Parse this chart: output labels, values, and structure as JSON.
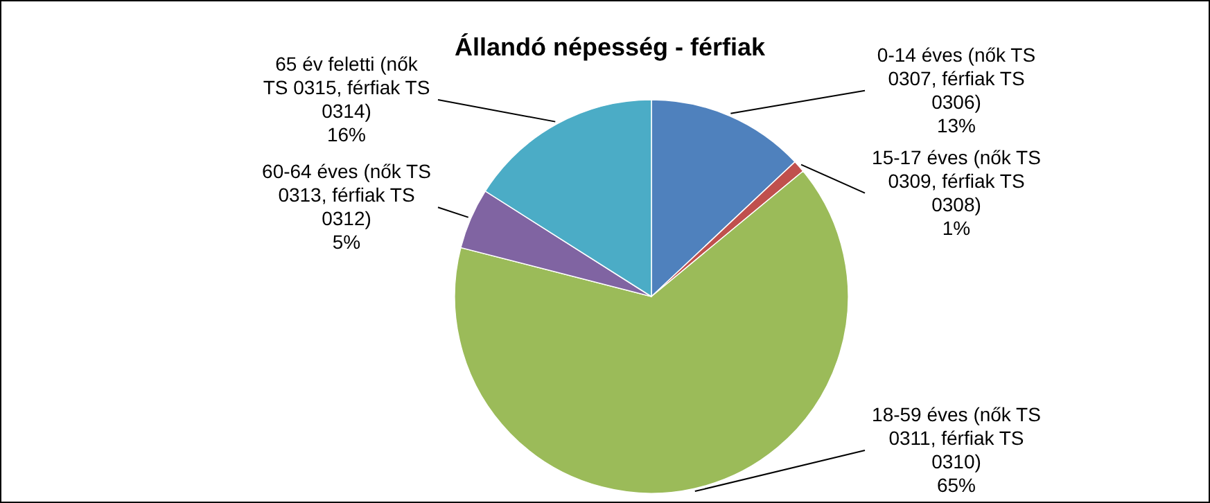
{
  "chart_data": {
    "type": "pie",
    "title": "Állandó népesség - férfiak",
    "categories": [
      "0-14 éves (nők TS 0307, férfiak TS 0306)",
      "15-17 éves (nők TS 0309, férfiak TS 0308)",
      "18-59 éves (nők TS 0311, férfiak TS 0310)",
      "60-64 éves (nők TS 0313, férfiak TS 0312)",
      "65 év feletti (nők TS 0315, férfiak TS 0314)"
    ],
    "values": [
      13,
      1,
      65,
      5,
      16
    ],
    "value_labels": [
      "13%",
      "1%",
      "65%",
      "5%",
      "16%"
    ],
    "colors": [
      "#4f81bd",
      "#c0504d",
      "#9bbb59",
      "#8064a2",
      "#4bacc6"
    ]
  }
}
